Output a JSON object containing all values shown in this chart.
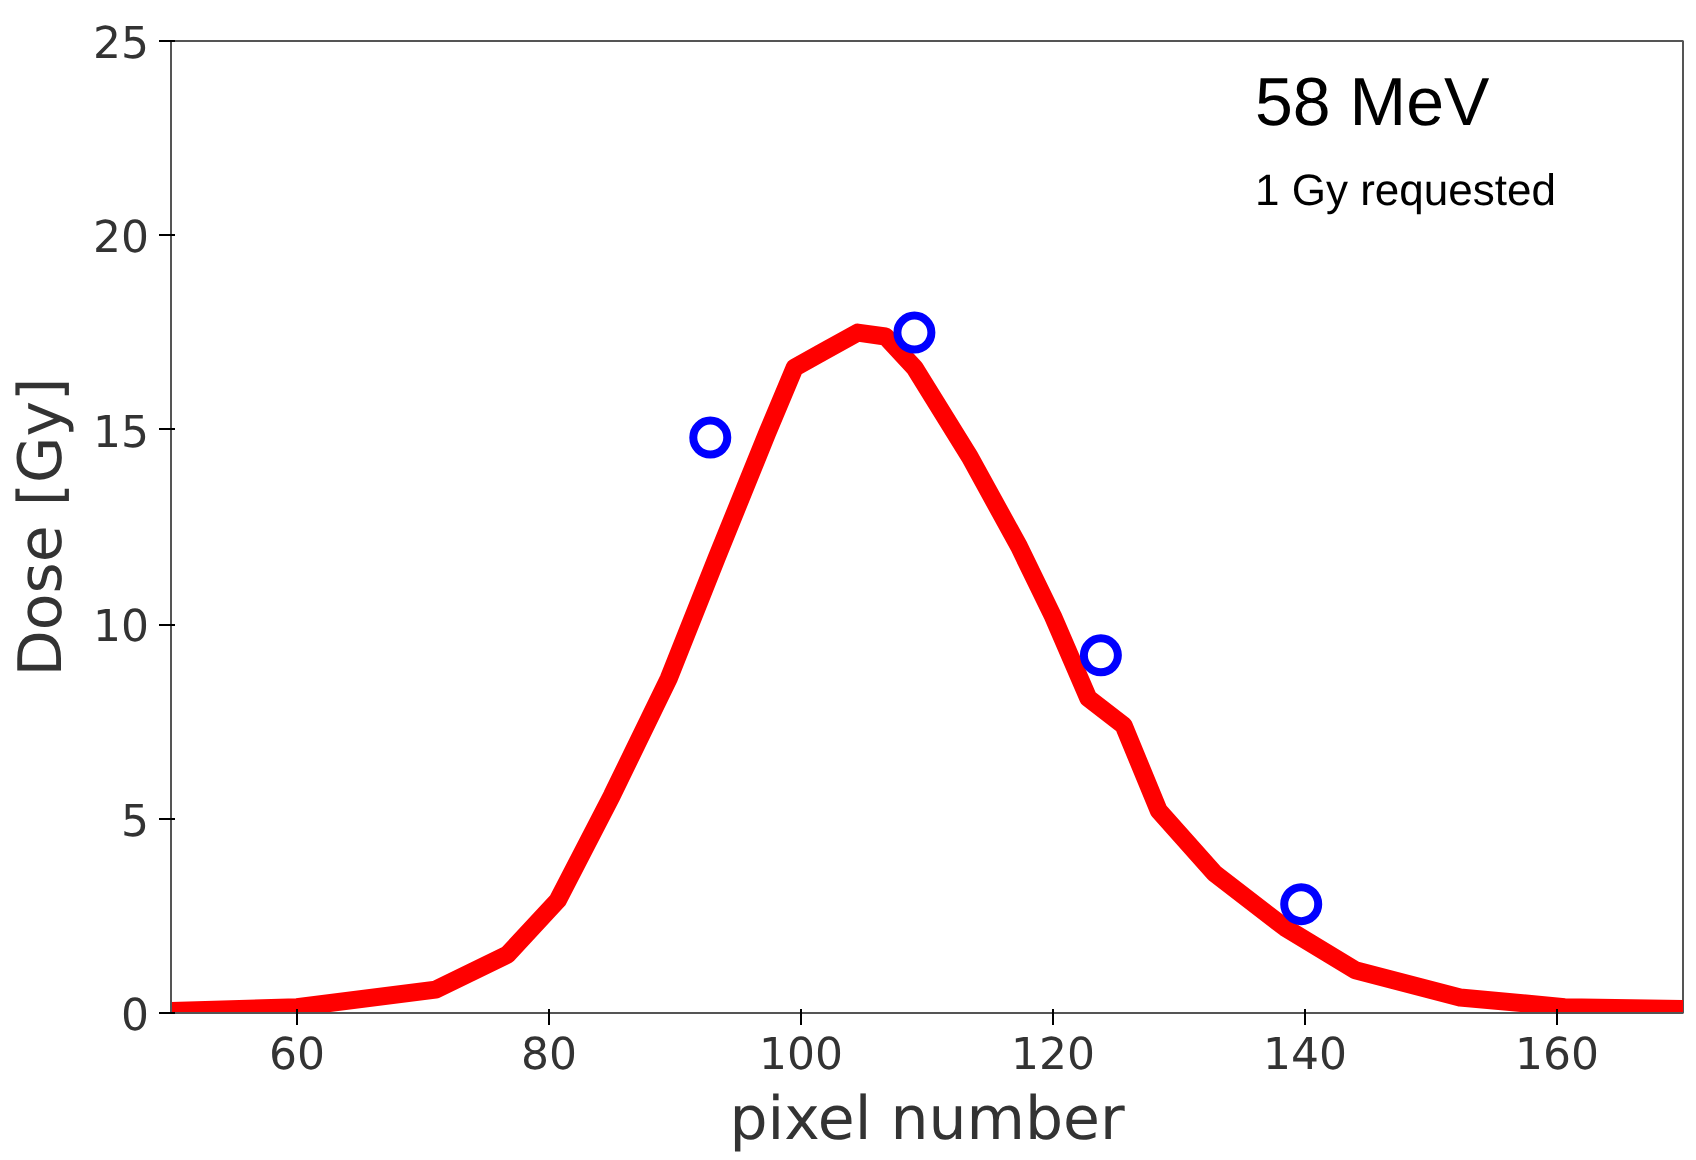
{
  "chart_data": {
    "type": "line",
    "xlabel": "pixel number",
    "ylabel": "Dose [Gy]",
    "annotations": [
      "58 MeV",
      "1 Gy requested"
    ],
    "xlim": [
      50,
      170
    ],
    "xticks": [
      60,
      80,
      100,
      120,
      140,
      160
    ],
    "ylim": [
      0,
      25
    ],
    "yticks": [
      0,
      5,
      10,
      15,
      20,
      25
    ],
    "grid": false,
    "series": [
      {
        "color": "#ff0000",
        "line_style": "solid",
        "x": [
          50,
          60,
          71,
          76.7,
          80.7,
          85,
          89.5,
          93.3,
          97.3,
          99.5,
          101.7,
          104.5,
          106.7,
          109,
          113.4,
          117.3,
          120,
          122.8,
          125.6,
          128.4,
          132.8,
          138.4,
          144,
          152.3,
          160.6,
          170
        ],
        "values": [
          0.05,
          0.15,
          0.6,
          1.5,
          2.9,
          5.6,
          8.6,
          11.7,
          14.9,
          16.6,
          17.0,
          17.5,
          17.4,
          16.6,
          14.3,
          12.0,
          10.2,
          8.1,
          7.4,
          5.2,
          3.6,
          2.2,
          1.1,
          0.4,
          0.15,
          0.1
        ]
      },
      {
        "type": "scatter",
        "color": "#0000ff",
        "marker": "circle",
        "x": [
          92.8,
          109,
          123.8,
          139.7
        ],
        "values": [
          14.8,
          17.5,
          9.2,
          2.8
        ]
      }
    ]
  }
}
